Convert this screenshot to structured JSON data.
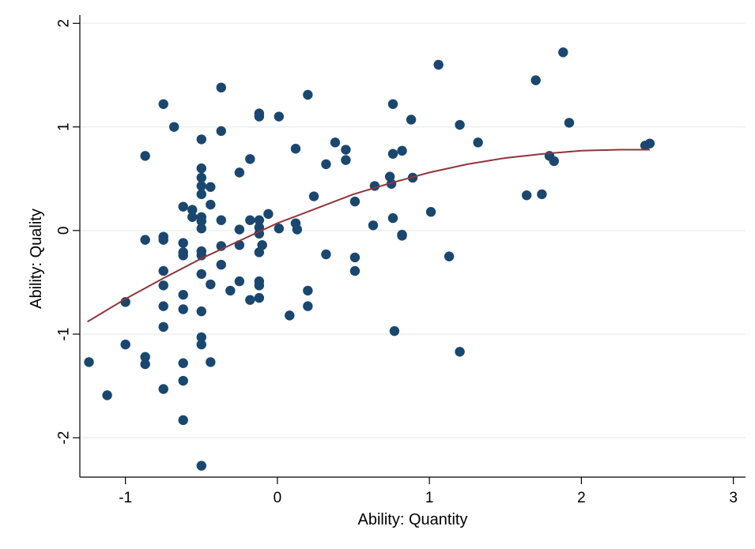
{
  "chart_data": {
    "type": "scatter",
    "title": "",
    "xlabel": "Ability: Quantity",
    "ylabel": "Ability: Quality",
    "xlim": [
      -1.3,
      3.08
    ],
    "ylim": [
      -2.38,
      2.08
    ],
    "grid": "horizontal",
    "legend": "none",
    "x_ticks": [
      {
        "value": -1,
        "label": "-1"
      },
      {
        "value": 0,
        "label": "0"
      },
      {
        "value": 1,
        "label": "1"
      },
      {
        "value": 2,
        "label": "2"
      },
      {
        "value": 3,
        "label": "3"
      }
    ],
    "y_ticks": [
      {
        "value": -2,
        "label": "-2"
      },
      {
        "value": -1,
        "label": "-1"
      },
      {
        "value": 0,
        "label": "0"
      },
      {
        "value": 1,
        "label": "1"
      },
      {
        "value": 2,
        "label": "2"
      }
    ],
    "colors": {
      "points": "#1a476f",
      "fit_line": "#90353b",
      "grid": "#eaf2f3",
      "axis": "#000000",
      "background": "#ffffff"
    },
    "series": [
      {
        "type": "scatter",
        "points": [
          {
            "x": -1.24,
            "y": -1.27
          },
          {
            "x": -1.12,
            "y": -1.59
          },
          {
            "x": -1.0,
            "y": -0.69
          },
          {
            "x": -1.0,
            "y": -1.1
          },
          {
            "x": -0.87,
            "y": 0.72
          },
          {
            "x": -0.87,
            "y": -0.09
          },
          {
            "x": -0.87,
            "y": -1.22
          },
          {
            "x": -0.87,
            "y": -1.29
          },
          {
            "x": -0.75,
            "y": 1.22
          },
          {
            "x": -0.75,
            "y": -0.06
          },
          {
            "x": -0.75,
            "y": -0.09
          },
          {
            "x": -0.75,
            "y": -0.39
          },
          {
            "x": -0.75,
            "y": -0.53
          },
          {
            "x": -0.75,
            "y": -0.73
          },
          {
            "x": -0.75,
            "y": -0.93
          },
          {
            "x": -0.75,
            "y": -1.53
          },
          {
            "x": -0.68,
            "y": 1.0
          },
          {
            "x": -0.62,
            "y": 0.23
          },
          {
            "x": -0.62,
            "y": -0.12
          },
          {
            "x": -0.62,
            "y": -0.21
          },
          {
            "x": -0.62,
            "y": -0.24
          },
          {
            "x": -0.62,
            "y": -0.62
          },
          {
            "x": -0.62,
            "y": -0.76
          },
          {
            "x": -0.62,
            "y": -1.28
          },
          {
            "x": -0.62,
            "y": -1.45
          },
          {
            "x": -0.62,
            "y": -1.83
          },
          {
            "x": -0.56,
            "y": 0.2
          },
          {
            "x": -0.56,
            "y": 0.13
          },
          {
            "x": -0.5,
            "y": 0.88
          },
          {
            "x": -0.5,
            "y": 0.6
          },
          {
            "x": -0.5,
            "y": 0.51
          },
          {
            "x": -0.5,
            "y": 0.43
          },
          {
            "x": -0.5,
            "y": 0.35
          },
          {
            "x": -0.5,
            "y": 0.13
          },
          {
            "x": -0.5,
            "y": 0.09
          },
          {
            "x": -0.5,
            "y": 0.02
          },
          {
            "x": -0.5,
            "y": -0.2
          },
          {
            "x": -0.5,
            "y": -0.24
          },
          {
            "x": -0.5,
            "y": -0.42
          },
          {
            "x": -0.5,
            "y": -0.78
          },
          {
            "x": -0.5,
            "y": -1.03
          },
          {
            "x": -0.5,
            "y": -1.1
          },
          {
            "x": -0.5,
            "y": -2.27
          },
          {
            "x": -0.44,
            "y": 0.42
          },
          {
            "x": -0.44,
            "y": 0.25
          },
          {
            "x": -0.44,
            "y": -0.52
          },
          {
            "x": -0.44,
            "y": -1.27
          },
          {
            "x": -0.37,
            "y": 1.38
          },
          {
            "x": -0.37,
            "y": 0.96
          },
          {
            "x": -0.37,
            "y": 0.1
          },
          {
            "x": -0.37,
            "y": -0.15
          },
          {
            "x": -0.37,
            "y": -0.33
          },
          {
            "x": -0.31,
            "y": -0.58
          },
          {
            "x": -0.25,
            "y": 0.56
          },
          {
            "x": -0.25,
            "y": 0.01
          },
          {
            "x": -0.25,
            "y": -0.14
          },
          {
            "x": -0.25,
            "y": -0.49
          },
          {
            "x": -0.18,
            "y": 0.69
          },
          {
            "x": -0.18,
            "y": 0.1
          },
          {
            "x": -0.18,
            "y": -0.67
          },
          {
            "x": -0.12,
            "y": 1.13
          },
          {
            "x": -0.12,
            "y": 1.1
          },
          {
            "x": -0.12,
            "y": 0.1
          },
          {
            "x": -0.12,
            "y": 0.03
          },
          {
            "x": -0.12,
            "y": -0.03
          },
          {
            "x": -0.12,
            "y": -0.21
          },
          {
            "x": -0.12,
            "y": -0.49
          },
          {
            "x": -0.12,
            "y": -0.53
          },
          {
            "x": -0.12,
            "y": -0.65
          },
          {
            "x": -0.1,
            "y": -0.14
          },
          {
            "x": -0.06,
            "y": 0.16
          },
          {
            "x": 0.01,
            "y": 1.1
          },
          {
            "x": 0.01,
            "y": 0.02
          },
          {
            "x": 0.08,
            "y": -0.82
          },
          {
            "x": 0.12,
            "y": 0.79
          },
          {
            "x": 0.12,
            "y": 0.07
          },
          {
            "x": 0.13,
            "y": 0.01
          },
          {
            "x": 0.2,
            "y": 1.31
          },
          {
            "x": 0.2,
            "y": -0.58
          },
          {
            "x": 0.2,
            "y": -0.73
          },
          {
            "x": 0.24,
            "y": 0.33
          },
          {
            "x": 0.32,
            "y": 0.64
          },
          {
            "x": 0.32,
            "y": -0.23
          },
          {
            "x": 0.38,
            "y": 0.85
          },
          {
            "x": 0.45,
            "y": 0.78
          },
          {
            "x": 0.45,
            "y": 0.68
          },
          {
            "x": 0.51,
            "y": 0.28
          },
          {
            "x": 0.51,
            "y": -0.26
          },
          {
            "x": 0.51,
            "y": -0.39
          },
          {
            "x": 0.63,
            "y": 0.05
          },
          {
            "x": 0.64,
            "y": 0.43
          },
          {
            "x": 0.74,
            "y": 0.52
          },
          {
            "x": 0.75,
            "y": 0.45
          },
          {
            "x": 0.76,
            "y": 1.22
          },
          {
            "x": 0.76,
            "y": 0.74
          },
          {
            "x": 0.76,
            "y": 0.12
          },
          {
            "x": 0.77,
            "y": -0.97
          },
          {
            "x": 0.82,
            "y": 0.77
          },
          {
            "x": 0.82,
            "y": -0.04
          },
          {
            "x": 0.82,
            "y": -0.05
          },
          {
            "x": 0.88,
            "y": 1.07
          },
          {
            "x": 0.89,
            "y": 0.51
          },
          {
            "x": 1.01,
            "y": 0.18
          },
          {
            "x": 1.06,
            "y": 1.6
          },
          {
            "x": 1.13,
            "y": -0.25
          },
          {
            "x": 1.2,
            "y": 1.02
          },
          {
            "x": 1.2,
            "y": -1.17
          },
          {
            "x": 1.32,
            "y": 0.85
          },
          {
            "x": 1.64,
            "y": 0.34
          },
          {
            "x": 1.7,
            "y": 1.45
          },
          {
            "x": 1.74,
            "y": 0.35
          },
          {
            "x": 1.79,
            "y": 0.72
          },
          {
            "x": 1.82,
            "y": 0.67
          },
          {
            "x": 1.88,
            "y": 1.72
          },
          {
            "x": 1.92,
            "y": 1.04
          },
          {
            "x": 2.42,
            "y": 0.82
          },
          {
            "x": 2.45,
            "y": 0.84
          }
        ]
      },
      {
        "type": "line",
        "points": [
          {
            "x": -1.25,
            "y": -0.88
          },
          {
            "x": -1.0,
            "y": -0.66
          },
          {
            "x": -0.75,
            "y": -0.46
          },
          {
            "x": -0.5,
            "y": -0.27
          },
          {
            "x": -0.25,
            "y": -0.1
          },
          {
            "x": 0.0,
            "y": 0.07
          },
          {
            "x": 0.25,
            "y": 0.21
          },
          {
            "x": 0.5,
            "y": 0.35
          },
          {
            "x": 0.75,
            "y": 0.46
          },
          {
            "x": 1.0,
            "y": 0.56
          },
          {
            "x": 1.25,
            "y": 0.64
          },
          {
            "x": 1.5,
            "y": 0.7
          },
          {
            "x": 1.75,
            "y": 0.74
          },
          {
            "x": 2.0,
            "y": 0.77
          },
          {
            "x": 2.25,
            "y": 0.78
          },
          {
            "x": 2.45,
            "y": 0.78
          }
        ]
      }
    ]
  }
}
